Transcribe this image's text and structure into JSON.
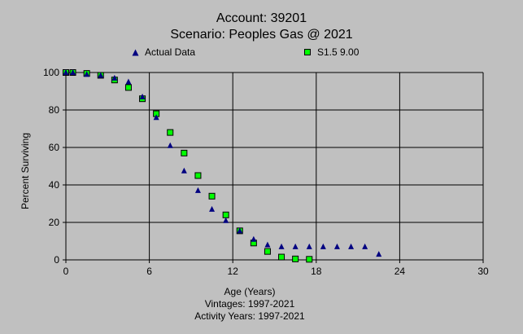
{
  "header": {
    "title": "Account: 39201",
    "subtitle": "Scenario: Peoples Gas @ 2021"
  },
  "legend": {
    "actual": "Actual Data",
    "curve": "S1.5 9.00"
  },
  "footer": {
    "xlabel": "Age (Years)",
    "vintages": "Vintages: 1997-2021",
    "activity": "Activity Years: 1997-2021"
  },
  "colors": {
    "background": "#c0c0c0",
    "actual_marker": "#000080",
    "curve_marker": "#00ff00"
  },
  "chart_data": {
    "type": "scatter",
    "title": "Account: 39201",
    "subtitle": "Scenario: Peoples Gas @ 2021",
    "xlabel": "Age (Years)",
    "ylabel": "Percent Surviving",
    "xlim": [
      0,
      30
    ],
    "ylim": [
      0,
      100
    ],
    "xticks": [
      0,
      6,
      12,
      18,
      24,
      30
    ],
    "yticks": [
      0,
      20,
      40,
      60,
      80,
      100
    ],
    "grid": true,
    "legend_position": "top",
    "series": [
      {
        "name": "Actual Data",
        "marker": "triangle",
        "x": [
          0,
          0.5,
          1.5,
          2.5,
          3.5,
          4.5,
          5.5,
          6.5,
          7.5,
          8.5,
          9.5,
          10.5,
          11.5,
          12.5,
          13.5,
          14.5,
          15.5,
          16.5,
          17.5,
          18.5,
          19.5,
          20.5,
          21.5,
          22.5
        ],
        "y": [
          100,
          100,
          99,
          98.5,
          97,
          95,
          87,
          76,
          61,
          47.5,
          37,
          27,
          21,
          15.5,
          11,
          8,
          7,
          7,
          7,
          7,
          7,
          7,
          7,
          3
        ]
      },
      {
        "name": "S1.5 9.00",
        "marker": "square",
        "x": [
          0,
          0.5,
          1.5,
          2.5,
          3.5,
          4.5,
          5.5,
          6.5,
          7.5,
          8.5,
          9.5,
          10.5,
          11.5,
          12.5,
          13.5,
          14.5,
          15.5,
          16.5,
          17.5
        ],
        "y": [
          100,
          100,
          99.5,
          98.5,
          96,
          92,
          86,
          78,
          68,
          57,
          45,
          34,
          24,
          15.5,
          9,
          4.5,
          1.5,
          0.5,
          0.3
        ]
      }
    ]
  }
}
